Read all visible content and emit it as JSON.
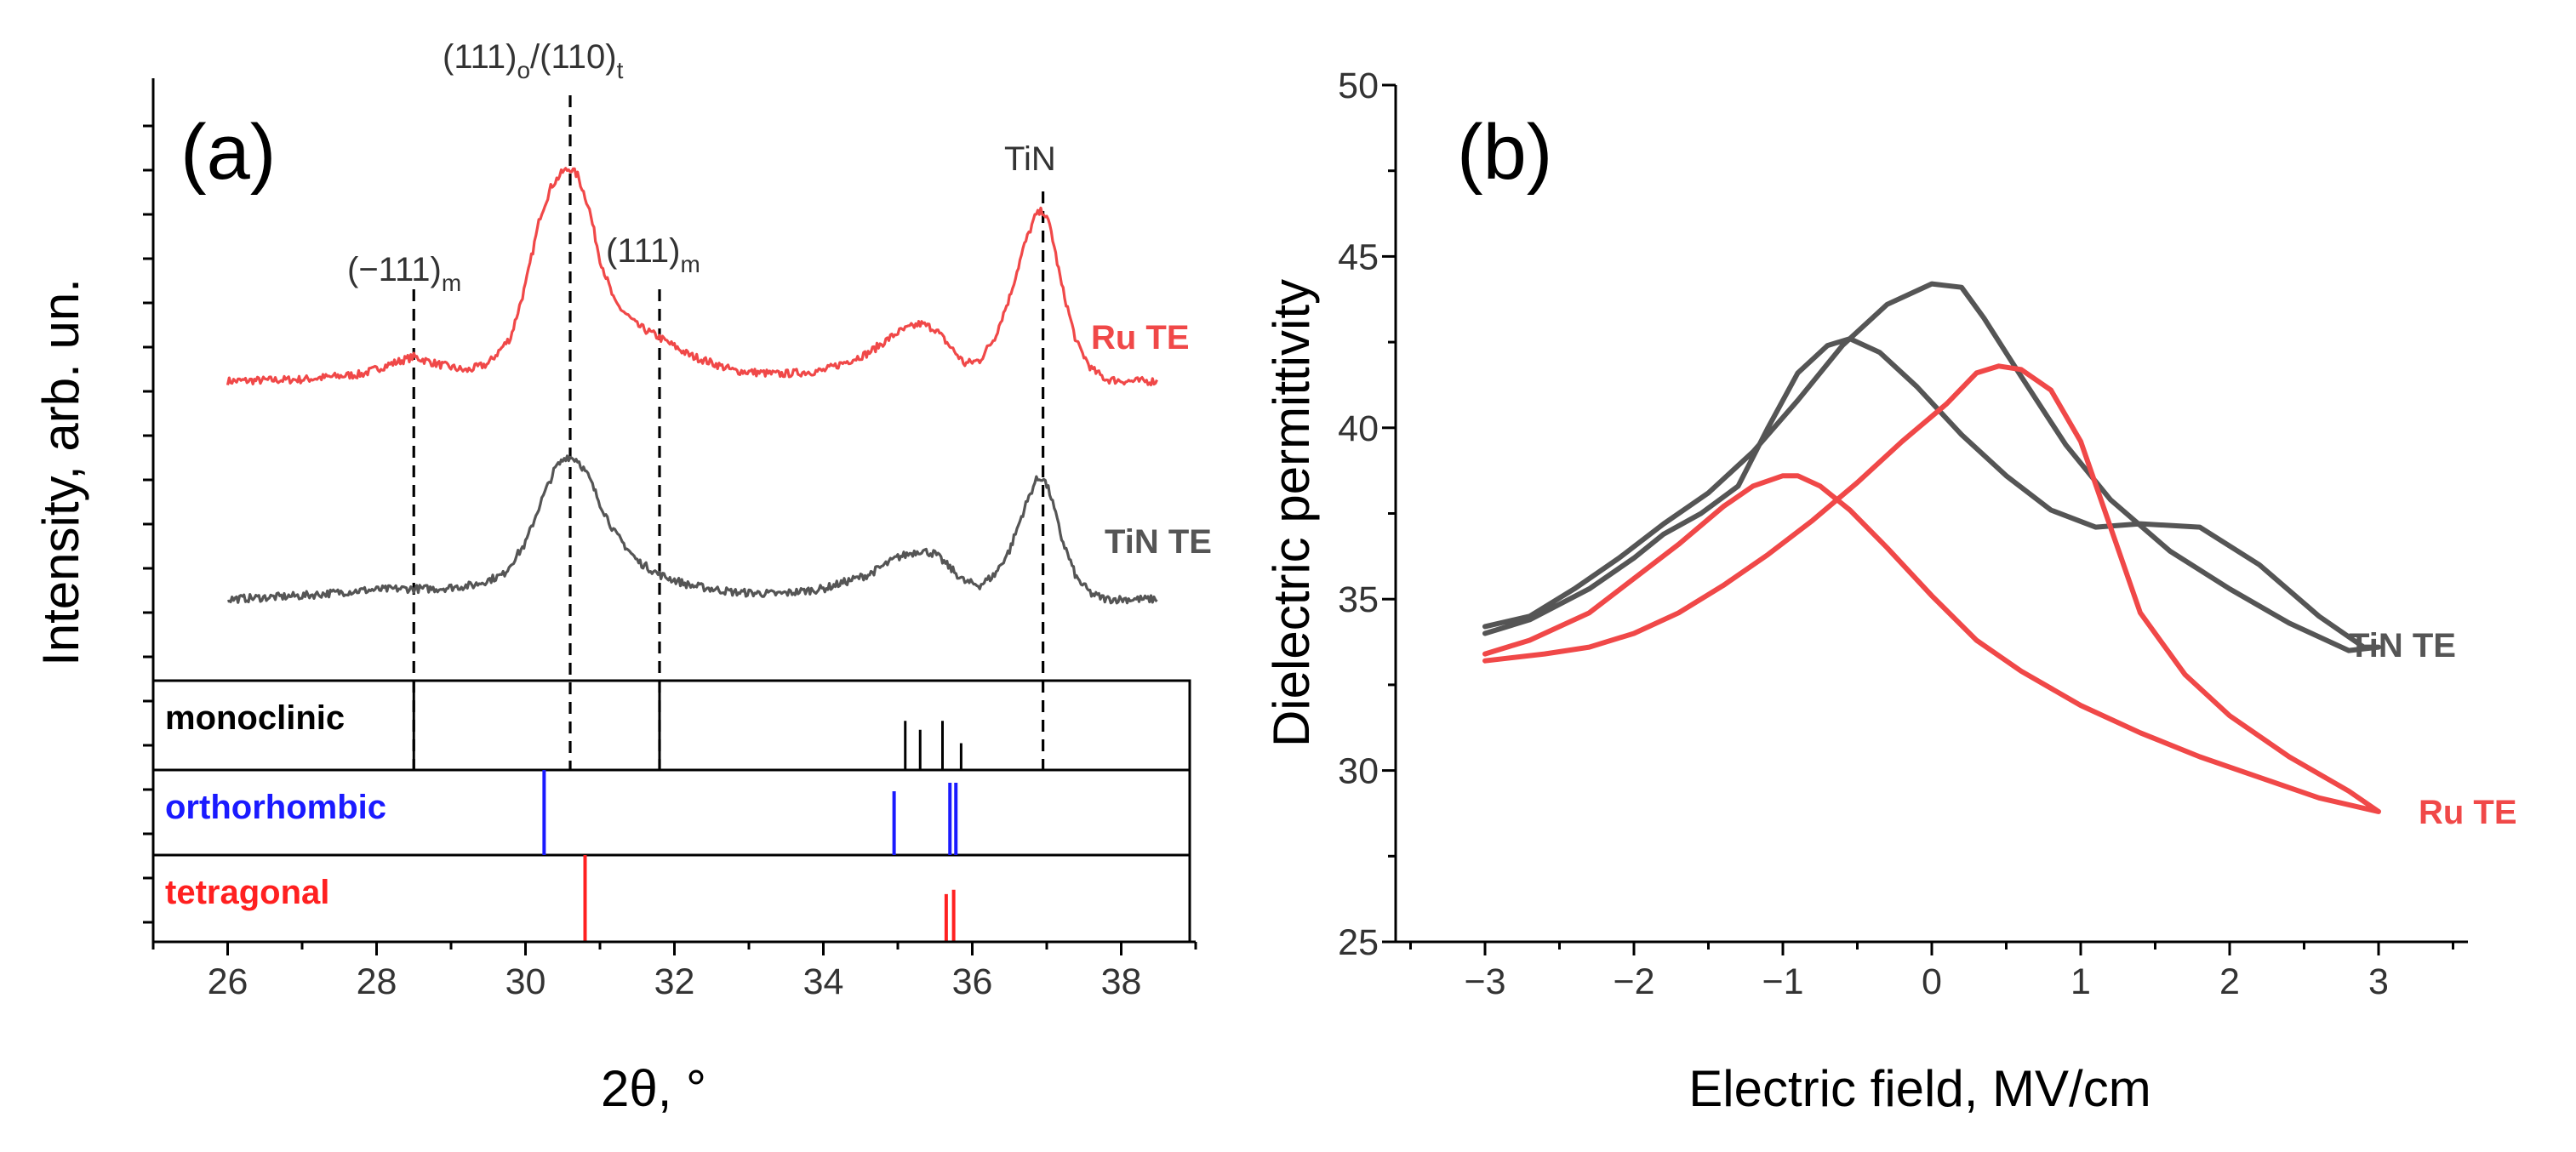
{
  "chart_data": [
    {
      "panel": "(a)",
      "type": "line",
      "xlabel": "2θ, °",
      "ylabel": "Intensity, arb. un.",
      "xlim": [
        25,
        39
      ],
      "xticks": [
        26,
        28,
        30,
        32,
        34,
        36,
        38
      ],
      "series": [
        {
          "name": "Ru TE",
          "color": "#f04848",
          "baseline": 0,
          "x": [
            26.0,
            27.0,
            27.8,
            28.2,
            28.5,
            28.8,
            29.2,
            29.5,
            29.8,
            30.0,
            30.2,
            30.35,
            30.5,
            30.6,
            30.7,
            30.85,
            31.0,
            31.2,
            31.5,
            31.8,
            32.2,
            32.8,
            33.4,
            34.0,
            34.6,
            35.0,
            35.3,
            35.5,
            35.7,
            35.9,
            36.1,
            36.3,
            36.5,
            36.7,
            36.85,
            36.95,
            37.05,
            37.2,
            37.4,
            37.6,
            37.8,
            38.1,
            38.5
          ],
          "y": [
            0.0,
            0.01,
            0.04,
            0.1,
            0.14,
            0.1,
            0.06,
            0.1,
            0.25,
            0.55,
            0.95,
            1.12,
            1.2,
            1.22,
            1.18,
            1.0,
            0.7,
            0.45,
            0.32,
            0.25,
            0.15,
            0.06,
            0.04,
            0.06,
            0.16,
            0.28,
            0.33,
            0.3,
            0.2,
            0.1,
            0.12,
            0.25,
            0.48,
            0.78,
            0.95,
            0.98,
            0.88,
            0.55,
            0.22,
            0.07,
            0.01,
            0.0,
            0.0
          ]
        },
        {
          "name": "TiN TE",
          "color": "#555555",
          "baseline": -1.25,
          "x": [
            26.0,
            27.0,
            27.8,
            28.3,
            28.8,
            29.3,
            29.7,
            30.0,
            30.2,
            30.4,
            30.55,
            30.7,
            30.85,
            31.0,
            31.2,
            31.5,
            31.8,
            32.2,
            32.8,
            33.4,
            34.0,
            34.6,
            35.0,
            35.3,
            35.5,
            35.7,
            35.9,
            36.1,
            36.3,
            36.5,
            36.7,
            36.85,
            36.95,
            37.05,
            37.2,
            37.4,
            37.6,
            37.8,
            38.1,
            38.5
          ],
          "y": [
            0.0,
            0.02,
            0.05,
            0.06,
            0.06,
            0.08,
            0.14,
            0.32,
            0.55,
            0.75,
            0.82,
            0.8,
            0.7,
            0.55,
            0.38,
            0.22,
            0.14,
            0.08,
            0.04,
            0.03,
            0.06,
            0.14,
            0.24,
            0.28,
            0.26,
            0.18,
            0.1,
            0.08,
            0.14,
            0.28,
            0.52,
            0.68,
            0.7,
            0.6,
            0.35,
            0.12,
            0.03,
            0.0,
            0.0,
            0.0
          ]
        }
      ],
      "reference_lines": [
        {
          "x": 28.5,
          "label": "(−111)",
          "sub": "m"
        },
        {
          "x": 30.6,
          "label": "(111)",
          "sub": "o",
          "label2": "/(110)",
          "sub2": "t"
        },
        {
          "x": 31.8,
          "label": "(111)",
          "sub": "m"
        },
        {
          "x": 36.95,
          "label": "TiN",
          "sub": ""
        }
      ],
      "phases": [
        {
          "name": "monoclinic",
          "color": "#000000",
          "sticks": [
            28.5,
            31.8,
            35.1,
            35.3,
            35.6,
            35.85
          ],
          "heights": [
            1.0,
            1.0,
            0.55,
            0.45,
            0.55,
            0.3
          ]
        },
        {
          "name": "orthorhombic",
          "color": "#1a1aff",
          "sticks": [
            30.25,
            34.95,
            35.7,
            35.78
          ],
          "heights": [
            1.0,
            0.75,
            0.85,
            0.85
          ]
        },
        {
          "name": "tetragonal",
          "color": "#ff2020",
          "sticks": [
            30.8,
            35.65,
            35.75
          ],
          "heights": [
            1.0,
            0.55,
            0.6
          ]
        }
      ]
    },
    {
      "panel": "(b)",
      "type": "line",
      "xlabel": "Electric field, MV/cm",
      "ylabel": "Dielectric permittivity",
      "xlim": [
        -3.6,
        3.6
      ],
      "ylim": [
        25,
        50
      ],
      "xticks": [
        -3,
        -2,
        -1,
        0,
        1,
        2,
        3
      ],
      "xticklabels": [
        "−3",
        "−2",
        "−1",
        "0",
        "1",
        "2",
        "3"
      ],
      "yticks": [
        25,
        30,
        35,
        40,
        45,
        50
      ],
      "series": [
        {
          "name": "TiN TE",
          "color": "#555555",
          "x": [
            -3.0,
            -2.7,
            -2.3,
            -2.0,
            -1.8,
            -1.55,
            -1.3,
            -1.1,
            -0.9,
            -0.7,
            -0.55,
            -0.35,
            -0.1,
            0.2,
            0.5,
            0.8,
            1.1,
            1.4,
            1.8,
            2.2,
            2.6,
            2.9,
            3.0,
            2.8,
            2.4,
            2.0,
            1.6,
            1.2,
            0.9,
            0.6,
            0.35,
            0.2,
            0.0,
            -0.3,
            -0.6,
            -0.9,
            -1.2,
            -1.5,
            -1.8,
            -2.1,
            -2.4,
            -2.7,
            -3.0
          ],
          "y": [
            34.0,
            34.4,
            35.3,
            36.2,
            36.9,
            37.5,
            38.3,
            40.0,
            41.6,
            42.4,
            42.6,
            42.2,
            41.2,
            39.8,
            38.6,
            37.6,
            37.1,
            37.2,
            37.1,
            36.0,
            34.5,
            33.6,
            33.6,
            33.5,
            34.3,
            35.3,
            36.4,
            37.9,
            39.5,
            41.5,
            43.2,
            44.1,
            44.2,
            43.6,
            42.4,
            40.8,
            39.3,
            38.1,
            37.2,
            36.2,
            35.3,
            34.5,
            34.2
          ]
        },
        {
          "name": "Ru TE",
          "color": "#f04848",
          "x": [
            -3.0,
            -2.7,
            -2.3,
            -2.0,
            -1.7,
            -1.4,
            -1.2,
            -1.0,
            -0.9,
            -0.75,
            -0.55,
            -0.3,
            0.0,
            0.3,
            0.6,
            1.0,
            1.4,
            1.8,
            2.2,
            2.6,
            2.9,
            3.0,
            2.8,
            2.4,
            2.0,
            1.7,
            1.4,
            1.2,
            1.0,
            0.8,
            0.6,
            0.45,
            0.3,
            0.1,
            -0.2,
            -0.5,
            -0.8,
            -1.1,
            -1.4,
            -1.7,
            -2.0,
            -2.3,
            -2.6,
            -3.0
          ],
          "y": [
            33.4,
            33.8,
            34.6,
            35.6,
            36.6,
            37.7,
            38.3,
            38.6,
            38.6,
            38.3,
            37.6,
            36.5,
            35.1,
            33.8,
            32.9,
            31.9,
            31.1,
            30.4,
            29.8,
            29.2,
            28.9,
            28.8,
            29.4,
            30.4,
            31.6,
            32.8,
            34.6,
            37.1,
            39.6,
            41.1,
            41.7,
            41.8,
            41.6,
            40.7,
            39.6,
            38.4,
            37.3,
            36.3,
            35.4,
            34.6,
            34.0,
            33.6,
            33.4,
            33.2
          ]
        }
      ]
    }
  ]
}
